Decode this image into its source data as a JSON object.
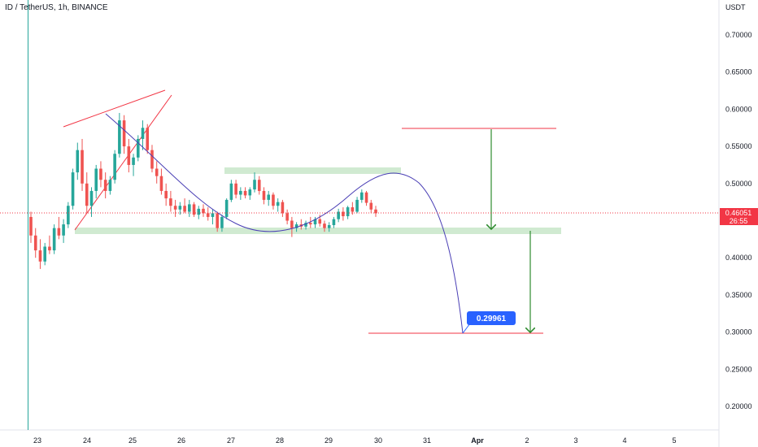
{
  "header": {
    "symbol_title": "ID / TetherUS, 1h, BINANCE"
  },
  "price_axis": {
    "currency": "USDT",
    "ticks": [
      "0.70000",
      "0.65000",
      "0.60000",
      "0.55000",
      "0.50000",
      "0.45000",
      "0.40000",
      "0.35000",
      "0.30000",
      "0.25000",
      "0.20000"
    ]
  },
  "time_axis": {
    "ticks": [
      "23",
      "24",
      "25",
      "26",
      "27",
      "28",
      "29",
      "30",
      "31",
      "Apr",
      "2",
      "3",
      "4",
      "5"
    ]
  },
  "last_price": {
    "value": "0.46051",
    "countdown": "26:55",
    "color": "#f23645"
  },
  "target_label": {
    "value": "0.29961",
    "color": "#2962ff"
  },
  "colors": {
    "up": "#26a69a",
    "down": "#ef5350",
    "trend_line": "#f23645",
    "arc": "#4a3fb5",
    "arrow": "#2e8b2e",
    "zone": "#c8e6c9"
  },
  "chart_data": {
    "type": "candlestick",
    "symbol": "ID / TetherUS",
    "timeframe": "1h",
    "exchange": "BINANCE",
    "y_range": [
      0.16,
      0.75
    ],
    "candles_ohlc": [
      [
        0.455,
        0.462,
        0.42,
        0.43
      ],
      [
        0.43,
        0.44,
        0.4,
        0.41
      ],
      [
        0.41,
        0.425,
        0.385,
        0.395
      ],
      [
        0.395,
        0.42,
        0.39,
        0.415
      ],
      [
        0.415,
        0.43,
        0.405,
        0.41
      ],
      [
        0.41,
        0.445,
        0.405,
        0.44
      ],
      [
        0.44,
        0.455,
        0.425,
        0.43
      ],
      [
        0.43,
        0.452,
        0.42,
        0.445
      ],
      [
        0.445,
        0.475,
        0.44,
        0.47
      ],
      [
        0.47,
        0.52,
        0.465,
        0.515
      ],
      [
        0.515,
        0.555,
        0.505,
        0.545
      ],
      [
        0.545,
        0.56,
        0.49,
        0.5
      ],
      [
        0.5,
        0.515,
        0.46,
        0.47
      ],
      [
        0.47,
        0.495,
        0.455,
        0.49
      ],
      [
        0.49,
        0.525,
        0.48,
        0.52
      ],
      [
        0.52,
        0.53,
        0.495,
        0.505
      ],
      [
        0.505,
        0.515,
        0.48,
        0.49
      ],
      [
        0.49,
        0.51,
        0.485,
        0.505
      ],
      [
        0.505,
        0.545,
        0.5,
        0.54
      ],
      [
        0.54,
        0.595,
        0.535,
        0.585
      ],
      [
        0.585,
        0.592,
        0.54,
        0.55
      ],
      [
        0.55,
        0.56,
        0.515,
        0.525
      ],
      [
        0.525,
        0.54,
        0.51,
        0.535
      ],
      [
        0.535,
        0.565,
        0.53,
        0.56
      ],
      [
        0.56,
        0.585,
        0.545,
        0.575
      ],
      [
        0.575,
        0.58,
        0.54,
        0.545
      ],
      [
        0.545,
        0.552,
        0.515,
        0.52
      ],
      [
        0.52,
        0.53,
        0.5,
        0.51
      ],
      [
        0.51,
        0.52,
        0.485,
        0.49
      ],
      [
        0.49,
        0.5,
        0.47,
        0.48
      ],
      [
        0.48,
        0.49,
        0.462,
        0.47
      ],
      [
        0.47,
        0.478,
        0.455,
        0.465
      ],
      [
        0.465,
        0.475,
        0.458,
        0.47
      ],
      [
        0.47,
        0.48,
        0.46,
        0.462
      ],
      [
        0.462,
        0.478,
        0.455,
        0.472
      ],
      [
        0.472,
        0.475,
        0.455,
        0.458
      ],
      [
        0.458,
        0.47,
        0.452,
        0.466
      ],
      [
        0.466,
        0.472,
        0.455,
        0.46
      ],
      [
        0.46,
        0.468,
        0.45,
        0.455
      ],
      [
        0.455,
        0.465,
        0.445,
        0.46
      ],
      [
        0.46,
        0.462,
        0.435,
        0.44
      ],
      [
        0.44,
        0.458,
        0.435,
        0.455
      ],
      [
        0.455,
        0.48,
        0.452,
        0.478
      ],
      [
        0.478,
        0.505,
        0.475,
        0.5
      ],
      [
        0.5,
        0.505,
        0.48,
        0.485
      ],
      [
        0.485,
        0.495,
        0.478,
        0.49
      ],
      [
        0.49,
        0.495,
        0.48,
        0.484
      ],
      [
        0.484,
        0.495,
        0.478,
        0.492
      ],
      [
        0.492,
        0.515,
        0.488,
        0.505
      ],
      [
        0.505,
        0.51,
        0.485,
        0.49
      ],
      [
        0.49,
        0.495,
        0.472,
        0.478
      ],
      [
        0.478,
        0.49,
        0.47,
        0.485
      ],
      [
        0.485,
        0.488,
        0.465,
        0.47
      ],
      [
        0.47,
        0.48,
        0.462,
        0.475
      ],
      [
        0.475,
        0.478,
        0.455,
        0.46
      ],
      [
        0.46,
        0.465,
        0.445,
        0.45
      ],
      [
        0.45,
        0.455,
        0.428,
        0.44
      ],
      [
        0.44,
        0.448,
        0.435,
        0.445
      ],
      [
        0.445,
        0.452,
        0.438,
        0.442
      ],
      [
        0.442,
        0.45,
        0.438,
        0.447
      ],
      [
        0.447,
        0.455,
        0.44,
        0.445
      ],
      [
        0.445,
        0.455,
        0.44,
        0.452
      ],
      [
        0.452,
        0.458,
        0.442,
        0.446
      ],
      [
        0.446,
        0.45,
        0.435,
        0.44
      ],
      [
        0.44,
        0.448,
        0.435,
        0.444
      ],
      [
        0.444,
        0.455,
        0.44,
        0.452
      ],
      [
        0.452,
        0.466,
        0.448,
        0.462
      ],
      [
        0.462,
        0.468,
        0.45,
        0.456
      ],
      [
        0.456,
        0.47,
        0.452,
        0.468
      ],
      [
        0.468,
        0.475,
        0.458,
        0.462
      ],
      [
        0.462,
        0.482,
        0.46,
        0.478
      ],
      [
        0.478,
        0.492,
        0.474,
        0.488
      ],
      [
        0.488,
        0.49,
        0.47,
        0.474
      ],
      [
        0.474,
        0.478,
        0.46,
        0.465
      ],
      [
        0.465,
        0.47,
        0.455,
        0.46
      ]
    ],
    "annotations": {
      "support_zone": 0.4345,
      "upper_zone": 0.5165,
      "upper_target_line": 0.574,
      "lower_target_line": 0.2996,
      "projected_target": 0.29961
    }
  }
}
